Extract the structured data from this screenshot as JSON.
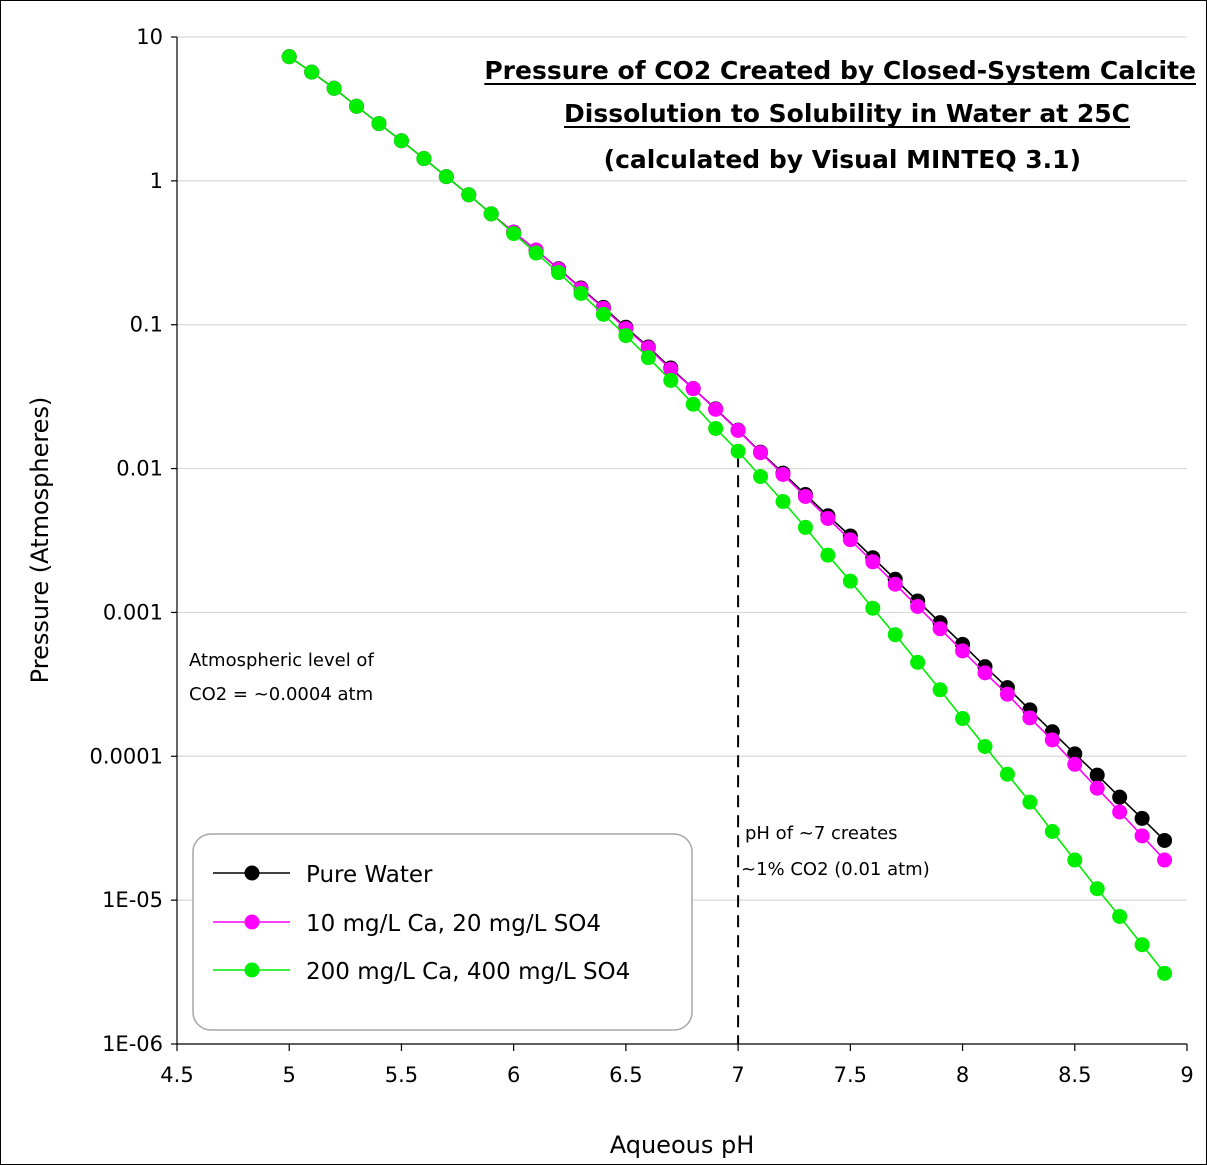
{
  "chart_data": {
    "type": "line",
    "title_lines": [
      "Pressure of CO2 Created by Closed-System Calcite",
      "Dissolution to Solubility in Water at 25C",
      "(calculated by Visual MINTEQ 3.1)"
    ],
    "xlabel": "Aqueous pH",
    "ylabel": "Pressure (Atmospheres)",
    "xlim": [
      4.5,
      9
    ],
    "ylim": [
      1e-06,
      10
    ],
    "yscale": "log",
    "grid": true,
    "legend_position": "bottom-left",
    "x_ticks": [
      "4.5",
      "5",
      "5.5",
      "6",
      "6.5",
      "7",
      "7.5",
      "8",
      "8.5",
      "9"
    ],
    "y_ticks": [
      "10",
      "1",
      "0.1",
      "0.01",
      "0.001",
      "0.0001",
      "1E-05",
      "1E-06"
    ],
    "x": [
      5.0,
      5.1,
      5.2,
      5.3,
      5.4,
      5.5,
      5.6,
      5.7,
      5.8,
      5.9,
      6.0,
      6.1,
      6.2,
      6.3,
      6.4,
      6.5,
      6.6,
      6.7,
      6.8,
      6.9,
      7.0,
      7.1,
      7.2,
      7.3,
      7.4,
      7.5,
      7.6,
      7.7,
      7.8,
      7.9,
      8.0,
      8.1,
      8.2,
      8.3,
      8.4,
      8.5,
      8.6,
      8.7,
      8.8,
      8.9
    ],
    "series": [
      {
        "name": "Pure Water",
        "color": "#000000",
        "values": [
          7.3,
          5.7,
          4.4,
          3.3,
          2.5,
          1.9,
          1.43,
          1.07,
          0.8,
          0.59,
          0.44,
          0.33,
          0.245,
          0.18,
          0.132,
          0.096,
          0.07,
          0.05,
          0.036,
          0.026,
          0.0185,
          0.013,
          0.0093,
          0.0066,
          0.0047,
          0.0034,
          0.0024,
          0.0017,
          0.0012,
          0.00085,
          0.0006,
          0.00042,
          0.0003,
          0.00021,
          0.000148,
          0.000104,
          7.4e-05,
          5.2e-05,
          3.7e-05,
          2.6e-05
        ]
      },
      {
        "name": "10 mg/L Ca, 20 mg/L SO4",
        "color": "#ff00ff",
        "values": [
          7.3,
          5.7,
          4.4,
          3.3,
          2.5,
          1.9,
          1.43,
          1.07,
          0.8,
          0.59,
          0.44,
          0.33,
          0.243,
          0.178,
          0.13,
          0.094,
          0.069,
          0.049,
          0.036,
          0.0258,
          0.0184,
          0.0129,
          0.0091,
          0.0064,
          0.0045,
          0.0032,
          0.00225,
          0.00157,
          0.0011,
          0.00077,
          0.00054,
          0.00038,
          0.00027,
          0.000185,
          0.00013,
          8.8e-05,
          6e-05,
          4.1e-05,
          2.8e-05,
          1.9e-05
        ]
      },
      {
        "name": "200 mg/L Ca, 400 mg/L SO4",
        "color": "#00ee00",
        "values": [
          7.3,
          5.7,
          4.4,
          3.3,
          2.5,
          1.9,
          1.43,
          1.07,
          0.8,
          0.59,
          0.43,
          0.315,
          0.23,
          0.165,
          0.118,
          0.084,
          0.059,
          0.041,
          0.028,
          0.019,
          0.0132,
          0.0088,
          0.0059,
          0.0039,
          0.0025,
          0.00165,
          0.00107,
          0.0007,
          0.00045,
          0.00029,
          0.000183,
          0.000117,
          7.5e-05,
          4.8e-05,
          3e-05,
          1.9e-05,
          1.2e-05,
          7.7e-06,
          4.9e-06,
          3.1e-06
        ]
      }
    ],
    "annotations": {
      "atmospheric_lines": [
        "Atmospheric level of",
        "CO2 = ~0.0004 atm"
      ],
      "ph7_lines": [
        "pH of ~7 creates",
        "~1% CO2 (0.01 atm)"
      ],
      "ph7_marker": {
        "x": 7.0,
        "y_from": 1e-06,
        "y_to": 0.0132
      }
    }
  }
}
